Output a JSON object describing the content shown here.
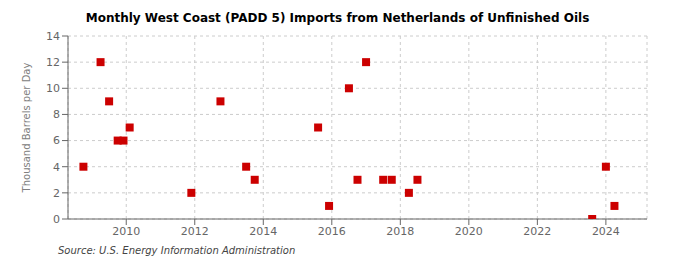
{
  "chart_data": {
    "type": "scatter",
    "title": "Monthly West Coast (PADD 5) Imports from Netherlands of Unfinished Oils",
    "ylabel": "Thousand Barrels per Day",
    "annotations": [
      "Source: U.S. Energy Information Administration"
    ],
    "x": [
      2008.75,
      2009.25,
      2009.5,
      2009.75,
      2009.92,
      2010.1,
      2011.9,
      2012.75,
      2013.5,
      2013.75,
      2015.6,
      2015.92,
      2016.5,
      2016.75,
      2017.0,
      2017.5,
      2017.75,
      2018.25,
      2018.5,
      2023.6,
      2024.0,
      2024.25
    ],
    "values": [
      4,
      12,
      9,
      6,
      6,
      7,
      2,
      9,
      4,
      3,
      7,
      1,
      10,
      3,
      12,
      3,
      3,
      2,
      3,
      0,
      4,
      1
    ],
    "color": "#cc0000",
    "marker": "square",
    "xlim": [
      2008.3,
      2025.2
    ],
    "ylim": [
      0,
      14
    ],
    "xticks": [
      2010,
      2012,
      2014,
      2016,
      2018,
      2020,
      2022,
      2024
    ],
    "yticks": [
      0,
      2,
      4,
      6,
      8,
      10,
      12,
      14
    ],
    "grid": true
  }
}
